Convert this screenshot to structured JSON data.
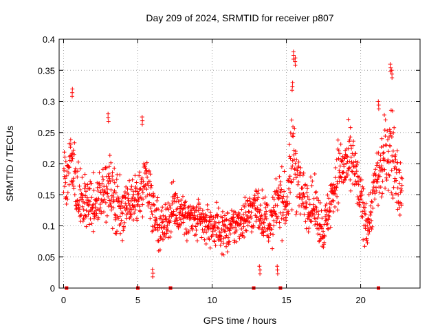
{
  "chart_data": {
    "type": "scatter",
    "title": "Day 209 of 2024, SRMTID for receiver p807",
    "xlabel": "GPS time / hours",
    "ylabel": "SRMTID / TECUs",
    "xlim": [
      -0.3,
      24
    ],
    "ylim": [
      0,
      0.4
    ],
    "xticks": [
      0,
      5,
      10,
      15,
      20
    ],
    "xtick_labels": [
      "0",
      "5",
      "10",
      "15",
      "20"
    ],
    "yticks": [
      0,
      0.05,
      0.1,
      0.15,
      0.2,
      0.25,
      0.3,
      0.35,
      0.4
    ],
    "ytick_labels": [
      "0",
      "0.05",
      "0.1",
      "0.15",
      "0.2",
      "0.25",
      "0.3",
      "0.35",
      "0.4"
    ],
    "grid": true,
    "marker": "+",
    "color": "#ff0000",
    "baseline_markers_x": [
      0.2,
      5.0,
      7.2,
      12.8,
      14.6,
      21.2
    ],
    "baseline_markers_y": 0,
    "series": [
      {
        "name": "SRMTID",
        "profile": [
          {
            "t": 0.0,
            "mean": 0.175,
            "spread": 0.035
          },
          {
            "t": 0.5,
            "mean": 0.2,
            "spread": 0.05
          },
          {
            "t": 1.0,
            "mean": 0.15,
            "spread": 0.04
          },
          {
            "t": 2.0,
            "mean": 0.135,
            "spread": 0.035
          },
          {
            "t": 3.0,
            "mean": 0.16,
            "spread": 0.05
          },
          {
            "t": 4.0,
            "mean": 0.12,
            "spread": 0.035
          },
          {
            "t": 5.0,
            "mean": 0.14,
            "spread": 0.04
          },
          {
            "t": 5.5,
            "mean": 0.18,
            "spread": 0.05
          },
          {
            "t": 6.5,
            "mean": 0.095,
            "spread": 0.03
          },
          {
            "t": 7.5,
            "mean": 0.13,
            "spread": 0.035
          },
          {
            "t": 8.5,
            "mean": 0.11,
            "spread": 0.03
          },
          {
            "t": 10.0,
            "mean": 0.1,
            "spread": 0.03
          },
          {
            "t": 11.0,
            "mean": 0.09,
            "spread": 0.03
          },
          {
            "t": 12.0,
            "mean": 0.11,
            "spread": 0.03
          },
          {
            "t": 13.0,
            "mean": 0.13,
            "spread": 0.035
          },
          {
            "t": 14.0,
            "mean": 0.1,
            "spread": 0.03
          },
          {
            "t": 14.5,
            "mean": 0.15,
            "spread": 0.05
          },
          {
            "t": 15.0,
            "mean": 0.13,
            "spread": 0.035
          },
          {
            "t": 15.5,
            "mean": 0.22,
            "spread": 0.08
          },
          {
            "t": 16.0,
            "mean": 0.15,
            "spread": 0.04
          },
          {
            "t": 17.0,
            "mean": 0.125,
            "spread": 0.035
          },
          {
            "t": 17.5,
            "mean": 0.09,
            "spread": 0.03
          },
          {
            "t": 18.5,
            "mean": 0.19,
            "spread": 0.045
          },
          {
            "t": 19.5,
            "mean": 0.2,
            "spread": 0.045
          },
          {
            "t": 20.0,
            "mean": 0.14,
            "spread": 0.04
          },
          {
            "t": 20.5,
            "mean": 0.1,
            "spread": 0.035
          },
          {
            "t": 21.0,
            "mean": 0.17,
            "spread": 0.04
          },
          {
            "t": 22.0,
            "mean": 0.23,
            "spread": 0.07
          },
          {
            "t": 22.8,
            "mean": 0.14,
            "spread": 0.04
          }
        ],
        "spikes": [
          {
            "x": 0.6,
            "y": 0.32
          },
          {
            "x": 3.0,
            "y": 0.28
          },
          {
            "x": 5.3,
            "y": 0.275
          },
          {
            "x": 15.5,
            "y": 0.38
          },
          {
            "x": 15.6,
            "y": 0.37
          },
          {
            "x": 15.4,
            "y": 0.33
          },
          {
            "x": 22.0,
            "y": 0.36
          },
          {
            "x": 22.1,
            "y": 0.35
          },
          {
            "x": 21.2,
            "y": 0.3
          },
          {
            "x": 13.2,
            "y": 0.035
          },
          {
            "x": 14.4,
            "y": 0.035
          },
          {
            "x": 6.0,
            "y": 0.03
          }
        ],
        "x_range_hours": [
          0,
          22.8
        ],
        "sample_count": 1500
      }
    ]
  }
}
